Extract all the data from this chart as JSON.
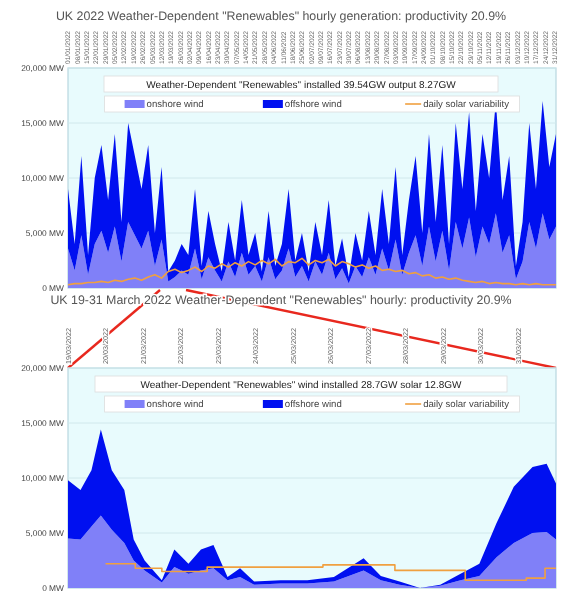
{
  "chart_data": [
    {
      "type": "area",
      "title": "UK 2022 Weather-Dependent \"Renewables\" hourly generation: productivity 20.9%",
      "annotations": [
        "Weather-Dependent \"Renewables\" installed 39.54GW  output 8.27GW"
      ],
      "stacked": true,
      "grid": "y",
      "legend": "top",
      "x": [
        "2022-01-01",
        "2022-01-06",
        "2022-01-11",
        "2022-01-16",
        "2022-01-21",
        "2022-01-26",
        "2022-01-31",
        "2022-02-05",
        "2022-02-10",
        "2022-02-15",
        "2022-02-20",
        "2022-02-25",
        "2022-03-02",
        "2022-03-07",
        "2022-03-12",
        "2022-03-17",
        "2022-03-22",
        "2022-03-27",
        "2022-04-01",
        "2022-04-06",
        "2022-04-11",
        "2022-04-16",
        "2022-04-21",
        "2022-04-26",
        "2022-05-01",
        "2022-05-06",
        "2022-05-11",
        "2022-05-16",
        "2022-05-21",
        "2022-05-26",
        "2022-05-31",
        "2022-06-05",
        "2022-06-10",
        "2022-06-15",
        "2022-06-20",
        "2022-06-25",
        "2022-06-30",
        "2022-07-05",
        "2022-07-10",
        "2022-07-15",
        "2022-07-20",
        "2022-07-25",
        "2022-07-30",
        "2022-08-04",
        "2022-08-09",
        "2022-08-14",
        "2022-08-19",
        "2022-08-24",
        "2022-08-29",
        "2022-09-03",
        "2022-09-08",
        "2022-09-13",
        "2022-09-18",
        "2022-09-23",
        "2022-09-28",
        "2022-10-03",
        "2022-10-08",
        "2022-10-13",
        "2022-10-18",
        "2022-10-23",
        "2022-10-28",
        "2022-11-02",
        "2022-11-07",
        "2022-11-12",
        "2022-11-17",
        "2022-11-22",
        "2022-11-27",
        "2022-12-02",
        "2022-12-07",
        "2022-12-12",
        "2022-12-17",
        "2022-12-22",
        "2022-12-27",
        "2023-01-01"
      ],
      "xlim": [
        "2022-01-01",
        "2023-01-01"
      ],
      "xticks": [
        {
          "value": "2022-01-01",
          "label": "01/01/2022"
        },
        {
          "value": "2022-01-08",
          "label": "08/01/2022"
        },
        {
          "value": "2022-01-15",
          "label": "15/01/2022"
        },
        {
          "value": "2022-01-22",
          "label": "22/01/2022"
        },
        {
          "value": "2022-01-29",
          "label": "29/01/2022"
        },
        {
          "value": "2022-02-05",
          "label": "05/02/2022"
        },
        {
          "value": "2022-02-12",
          "label": "12/02/2022"
        },
        {
          "value": "2022-02-19",
          "label": "19/02/2022"
        },
        {
          "value": "2022-02-26",
          "label": "26/02/2022"
        },
        {
          "value": "2022-03-05",
          "label": "05/03/2022"
        },
        {
          "value": "2022-03-12",
          "label": "12/03/2022"
        },
        {
          "value": "2022-03-19",
          "label": "19/03/2022"
        },
        {
          "value": "2022-03-26",
          "label": "26/03/2022"
        },
        {
          "value": "2022-04-02",
          "label": "02/04/2022"
        },
        {
          "value": "2022-04-09",
          "label": "09/04/2022"
        },
        {
          "value": "2022-04-16",
          "label": "16/04/2022"
        },
        {
          "value": "2022-04-23",
          "label": "23/04/2022"
        },
        {
          "value": "2022-04-30",
          "label": "30/04/2022"
        },
        {
          "value": "2022-05-07",
          "label": "07/05/2022"
        },
        {
          "value": "2022-05-14",
          "label": "14/05/2022"
        },
        {
          "value": "2022-05-21",
          "label": "21/05/2022"
        },
        {
          "value": "2022-05-28",
          "label": "28/05/2022"
        },
        {
          "value": "2022-06-04",
          "label": "04/06/2022"
        },
        {
          "value": "2022-06-11",
          "label": "11/06/2022"
        },
        {
          "value": "2022-06-18",
          "label": "18/06/2022"
        },
        {
          "value": "2022-06-25",
          "label": "25/06/2022"
        },
        {
          "value": "2022-07-02",
          "label": "02/07/2022"
        },
        {
          "value": "2022-07-09",
          "label": "09/07/2022"
        },
        {
          "value": "2022-07-16",
          "label": "16/07/2022"
        },
        {
          "value": "2022-07-23",
          "label": "23/07/2022"
        },
        {
          "value": "2022-07-30",
          "label": "30/07/2022"
        },
        {
          "value": "2022-08-06",
          "label": "06/08/2022"
        },
        {
          "value": "2022-08-13",
          "label": "13/08/2022"
        },
        {
          "value": "2022-08-20",
          "label": "20/08/2022"
        },
        {
          "value": "2022-08-27",
          "label": "27/08/2022"
        },
        {
          "value": "2022-09-03",
          "label": "03/09/2022"
        },
        {
          "value": "2022-09-10",
          "label": "10/09/2022"
        },
        {
          "value": "2022-09-17",
          "label": "17/09/2022"
        },
        {
          "value": "2022-09-24",
          "label": "24/09/2022"
        },
        {
          "value": "2022-10-01",
          "label": "01/10/2022"
        },
        {
          "value": "2022-10-08",
          "label": "08/10/2022"
        },
        {
          "value": "2022-10-15",
          "label": "15/10/2022"
        },
        {
          "value": "2022-10-22",
          "label": "22/10/2022"
        },
        {
          "value": "2022-10-29",
          "label": "29/10/2022"
        },
        {
          "value": "2022-11-05",
          "label": "05/11/2022"
        },
        {
          "value": "2022-11-12",
          "label": "12/11/2022"
        },
        {
          "value": "2022-11-19",
          "label": "19/11/2022"
        },
        {
          "value": "2022-11-26",
          "label": "26/11/2022"
        },
        {
          "value": "2022-12-03",
          "label": "03/12/2022"
        },
        {
          "value": "2022-12-10",
          "label": "10/12/2022"
        },
        {
          "value": "2022-12-17",
          "label": "17/12/2022"
        },
        {
          "value": "2022-12-24",
          "label": "24/12/2022"
        },
        {
          "value": "2022-12-31",
          "label": "31/12/2022"
        }
      ],
      "ylim": [
        0,
        20000
      ],
      "yticks": [
        {
          "value": 0,
          "label": "0 MW"
        },
        {
          "value": 5000,
          "label": "5,000 MW"
        },
        {
          "value": 10000,
          "label": "10,000 MW"
        },
        {
          "value": 15000,
          "label": "15,000 MW"
        },
        {
          "value": 20000,
          "label": "20,000 MW"
        }
      ],
      "series": [
        {
          "name": "onshore wind",
          "color": "#8080f8",
          "values": [
            3600,
            1600,
            4800,
            1200,
            4000,
            5200,
            3200,
            5600,
            2400,
            6000,
            4800,
            3600,
            5200,
            2000,
            4400,
            600,
            1000,
            1600,
            1200,
            3600,
            800,
            2800,
            1600,
            600,
            2400,
            1000,
            3200,
            1200,
            2000,
            600,
            2800,
            800,
            1600,
            3600,
            1000,
            2000,
            600,
            2400,
            1200,
            3200,
            800,
            1800,
            400,
            2000,
            1000,
            2800,
            1200,
            3600,
            1600,
            4400,
            1200,
            3200,
            4800,
            2000,
            5600,
            2400,
            5200,
            1600,
            6000,
            3600,
            6400,
            2800,
            5600,
            4000,
            6800,
            3200,
            4800,
            800,
            2400,
            6000,
            3600,
            6800,
            4400,
            5600
          ]
        },
        {
          "name": "offshore wind",
          "color": "#0010f0",
          "values": [
            5400,
            2400,
            7200,
            1800,
            6000,
            7800,
            4800,
            8400,
            3600,
            9000,
            7200,
            5400,
            7800,
            3000,
            6600,
            900,
            1500,
            2400,
            1800,
            5400,
            1200,
            4200,
            2400,
            900,
            3600,
            1500,
            4800,
            1800,
            3000,
            900,
            4200,
            1200,
            2400,
            5400,
            1500,
            3000,
            900,
            3600,
            1800,
            4800,
            1200,
            2700,
            600,
            3000,
            1500,
            4200,
            1800,
            5400,
            2400,
            6600,
            1800,
            4800,
            7200,
            3000,
            8400,
            3600,
            7800,
            2400,
            9000,
            5400,
            9600,
            4200,
            8400,
            6000,
            10200,
            4800,
            7200,
            1200,
            3600,
            9000,
            5400,
            10200,
            6600,
            8400
          ]
        },
        {
          "name": "daily solar variability",
          "type": "line",
          "color": "#f0a040",
          "values": [
            300,
            400,
            400,
            500,
            500,
            600,
            500,
            700,
            600,
            800,
            900,
            700,
            1000,
            1200,
            900,
            1500,
            1700,
            1400,
            1600,
            1900,
            1500,
            2000,
            1800,
            2200,
            1900,
            2300,
            2000,
            2400,
            2100,
            2500,
            2200,
            2600,
            2000,
            2400,
            2300,
            2700,
            2100,
            2500,
            2300,
            2600,
            2000,
            2400,
            2200,
            1900,
            2100,
            1800,
            2000,
            1600,
            1700,
            1500,
            1600,
            1300,
            1400,
            1100,
            1200,
            900,
            1000,
            800,
            900,
            700,
            600,
            500,
            600,
            400,
            500,
            400,
            400,
            300,
            400,
            300,
            400,
            300,
            300,
            300
          ]
        }
      ]
    },
    {
      "type": "area",
      "title": "UK 19-31 March 2022 Weather-Dependent \"Renewables\" hourly: productivity 20.9%",
      "annotations": [
        "Weather-Dependent \"Renewables\" wind installed 28.7GW  solar 12.8GW"
      ],
      "stacked": true,
      "grid": "y",
      "legend": "top",
      "x": [
        "2022-03-19T00:00",
        "2022-03-19T08:00",
        "2022-03-19T15:00",
        "2022-03-19T21:00",
        "2022-03-20T04:00",
        "2022-03-20T12:00",
        "2022-03-20T18:00",
        "2022-03-21T01:00",
        "2022-03-21T12:00",
        "2022-03-21T20:00",
        "2022-03-22T05:00",
        "2022-03-22T13:00",
        "2022-03-22T21:00",
        "2022-03-23T06:00",
        "2022-03-23T14:00",
        "2022-03-23T23:00",
        "2022-03-24T16:00",
        "2022-03-25T09:00",
        "2022-03-26T02:00",
        "2022-03-26T21:00",
        "2022-03-27T08:00",
        "2022-03-27T20:00",
        "2022-03-28T09:00",
        "2022-03-28T22:00",
        "2022-03-29T11:00",
        "2022-03-29T23:00",
        "2022-03-30T10:00",
        "2022-03-30T21:00",
        "2022-03-31T09:00",
        "2022-03-31T18:00",
        "2022-04-01T00:00"
      ],
      "xlim": [
        "2022-03-19",
        "2022-04-01"
      ],
      "xticks": [
        {
          "value": "2022-03-19",
          "label": "19/03/2022"
        },
        {
          "value": "2022-03-20",
          "label": "20/03/2022"
        },
        {
          "value": "2022-03-21",
          "label": "21/03/2022"
        },
        {
          "value": "2022-03-22",
          "label": "22/03/2022"
        },
        {
          "value": "2022-03-23",
          "label": "23/03/2022"
        },
        {
          "value": "2022-03-24",
          "label": "24/03/2022"
        },
        {
          "value": "2022-03-25",
          "label": "25/03/2022"
        },
        {
          "value": "2022-03-26",
          "label": "26/03/2022"
        },
        {
          "value": "2022-03-27",
          "label": "27/03/2022"
        },
        {
          "value": "2022-03-28",
          "label": "28/03/2022"
        },
        {
          "value": "2022-03-29",
          "label": "29/03/2022"
        },
        {
          "value": "2022-03-30",
          "label": "30/03/2022"
        },
        {
          "value": "2022-03-31",
          "label": "31/03/2022"
        }
      ],
      "ylim": [
        0,
        20000
      ],
      "yticks": [
        {
          "value": 0,
          "label": "0 MW"
        },
        {
          "value": 5000,
          "label": "5,000 MW"
        },
        {
          "value": 10000,
          "label": "10,000 MW"
        },
        {
          "value": 15000,
          "label": "15,000 MW"
        },
        {
          "value": 20000,
          "label": "20,000 MW"
        }
      ],
      "series": [
        {
          "name": "onshore wind",
          "color": "#8080f8",
          "values": [
            4500,
            4400,
            5600,
            6600,
            5300,
            4100,
            2500,
            1600,
            500,
            1900,
            1300,
            1600,
            1800,
            700,
            1000,
            300,
            400,
            400,
            600,
            1600,
            700,
            300,
            0,
            200,
            700,
            1100,
            2800,
            4100,
            5000,
            5100,
            4400
          ]
        },
        {
          "name": "offshore wind",
          "color": "#0010f0",
          "values": [
            5300,
            4500,
            5100,
            7800,
            5400,
            4800,
            1900,
            900,
            200,
            1600,
            900,
            1900,
            2100,
            300,
            800,
            300,
            300,
            300,
            400,
            1100,
            400,
            300,
            0,
            100,
            600,
            1100,
            3100,
            5100,
            6000,
            6200,
            5100
          ]
        },
        {
          "name": "daily solar variability",
          "type": "step",
          "color": "#f0a040",
          "x": [
            "2022-03-20T00:00",
            "2022-03-20T19:00",
            "2022-03-21T12:00",
            "2022-03-22T17:00",
            "2022-03-25T19:00",
            "2022-03-27T17:00",
            "2022-03-29T14:00",
            "2022-03-31T05:00",
            "2022-03-31T17:00",
            "2022-04-01T00:00"
          ],
          "values": [
            2200,
            1800,
            1500,
            1900,
            2100,
            1600,
            700,
            900,
            1800,
            1800
          ]
        }
      ]
    }
  ]
}
